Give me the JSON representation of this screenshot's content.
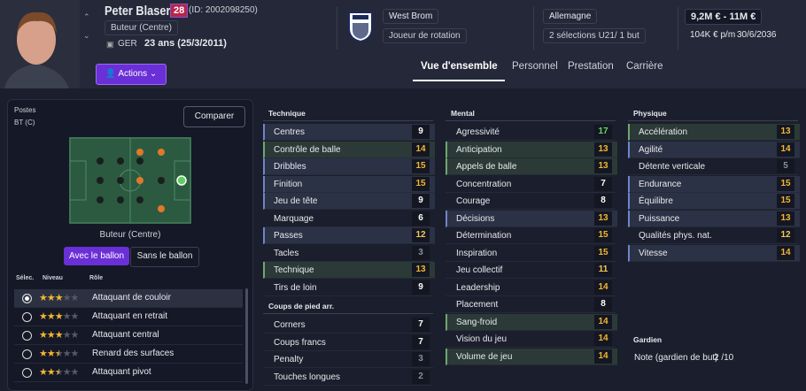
{
  "header": {
    "name": "Peter Blaser",
    "number": "28",
    "id": "(ID: 2002098250)",
    "position": "Buteur (Centre)",
    "nation": "GER",
    "age": "23 ans (25/3/2011)",
    "actions": "Actions",
    "club": "West Brom",
    "club_role": "Joueur de rotation",
    "country": "Allemagne",
    "caps": "2 sélections U21/ 1 but",
    "value": "9,2M € - 11M €",
    "wage": "104K € p/m",
    "contract": "30/6/2036"
  },
  "tabs": [
    "Vue d'ensemble",
    "Personnel",
    "Prestation",
    "Carrière"
  ],
  "left": {
    "positions_label": "Postes",
    "positions": "BT (C)",
    "compare": "Comparer",
    "pitch_label": "Buteur (Centre)",
    "toggle": [
      "Avec le ballon",
      "Sans le ballon"
    ],
    "role_headers": [
      "Sélec.",
      "Niveau",
      "Rôle"
    ],
    "roles": [
      {
        "level": 3,
        "name": "Attaquant de couloir"
      },
      {
        "level": 3,
        "name": "Attaquant en retrait"
      },
      {
        "level": 3,
        "name": "Attaquant central"
      },
      {
        "level": 2.5,
        "name": "Renard des surfaces"
      },
      {
        "level": 2.5,
        "name": "Attaquant pivot"
      }
    ]
  },
  "attributes": [
    {
      "title": "Technique",
      "rows": [
        [
          "Centres",
          9
        ],
        [
          "Contrôle de balle",
          14
        ],
        [
          "Dribbles",
          15
        ],
        [
          "Finition",
          15
        ],
        [
          "Jeu de tête",
          9
        ],
        [
          "Marquage",
          6
        ],
        [
          "Passes",
          12
        ],
        [
          "Tacles",
          3
        ],
        [
          "Technique",
          13
        ],
        [
          "Tirs de loin",
          9
        ]
      ]
    },
    {
      "title": "Coups de pied arr.",
      "rows": [
        [
          "Corners",
          7
        ],
        [
          "Coups francs",
          7
        ],
        [
          "Penalty",
          3
        ],
        [
          "Touches longues",
          2
        ]
      ]
    },
    {
      "title": "Mental",
      "rows": [
        [
          "Agressivité",
          17
        ],
        [
          "Anticipation",
          13
        ],
        [
          "Appels de balle",
          13
        ],
        [
          "Concentration",
          7
        ],
        [
          "Courage",
          8
        ],
        [
          "Décisions",
          13
        ],
        [
          "Détermination",
          15
        ],
        [
          "Inspiration",
          15
        ],
        [
          "Jeu collectif",
          11
        ],
        [
          "Leadership",
          14
        ],
        [
          "Placement",
          8
        ],
        [
          "Sang-froid",
          14
        ],
        [
          "Vision du jeu",
          14
        ],
        [
          "Volume de jeu",
          14
        ]
      ]
    },
    {
      "title": "Physique",
      "rows": [
        [
          "Accélération",
          13
        ],
        [
          "Agilité",
          14
        ],
        [
          "Détente verticale",
          5
        ],
        [
          "Endurance",
          15
        ],
        [
          "Équilibre",
          15
        ],
        [
          "Puissance",
          13
        ],
        [
          "Qualités phys. nat.",
          12
        ],
        [
          "Vitesse",
          14
        ]
      ]
    }
  ],
  "goalkeeper": {
    "title": "Gardien",
    "label": "Note (gardien de but)",
    "value": "2 /10"
  }
}
